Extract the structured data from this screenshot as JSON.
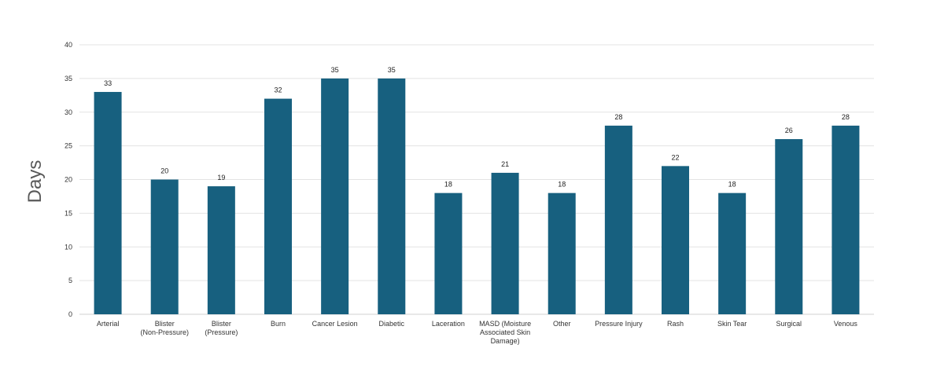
{
  "chart_data": {
    "type": "bar",
    "title": "",
    "xlabel": "",
    "ylabel": "Days",
    "ylim": [
      0,
      40
    ],
    "ytick_step": 5,
    "grid": true,
    "legend": "none",
    "bar_color": "#17607F",
    "categories": [
      "Arterial",
      "Blister (Non-Pressure)",
      "Blister (Pressure)",
      "Burn",
      "Cancer Lesion",
      "Diabetic",
      "Laceration",
      "MASD (Moisture Associated Skin Damage)",
      "Other",
      "Pressure Injury",
      "Rash",
      "Skin Tear",
      "Surgical",
      "Venous"
    ],
    "values": [
      33,
      20,
      19,
      32,
      35,
      35,
      18,
      21,
      18,
      28,
      22,
      18,
      26,
      28
    ]
  }
}
